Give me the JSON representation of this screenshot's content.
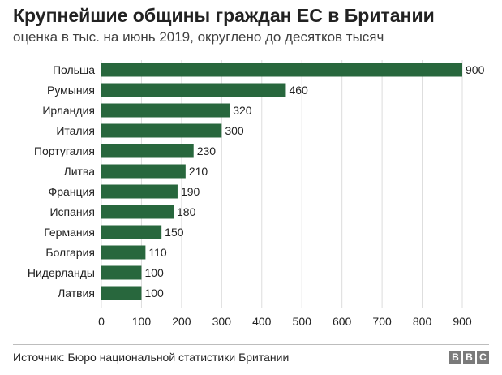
{
  "header": {
    "title": "Крупнейшие общины граждан ЕС в Британии",
    "subtitle": "оценка в тыс. на июнь 2019, округлено до десятков тысяч"
  },
  "footer": {
    "source": "Источник: Бюро национальной статистики Британии",
    "logo": [
      "B",
      "B",
      "C"
    ]
  },
  "colors": {
    "bar": "#28673d",
    "grid": "#dcdcdc",
    "axis": "#222222"
  },
  "chart_data": {
    "type": "bar",
    "orientation": "horizontal",
    "categories": [
      "Польша",
      "Румыния",
      "Ирландия",
      "Италия",
      "Португалия",
      "Литва",
      "Франция",
      "Испания",
      "Германия",
      "Болгария",
      "Нидерланды",
      "Латвия"
    ],
    "values": [
      900,
      460,
      320,
      300,
      230,
      210,
      190,
      180,
      150,
      110,
      100,
      100
    ],
    "xlim": [
      0,
      900
    ],
    "xticks": [
      0,
      100,
      200,
      300,
      400,
      500,
      600,
      700,
      800,
      900
    ],
    "data_labels": true,
    "grid": "vertical"
  }
}
